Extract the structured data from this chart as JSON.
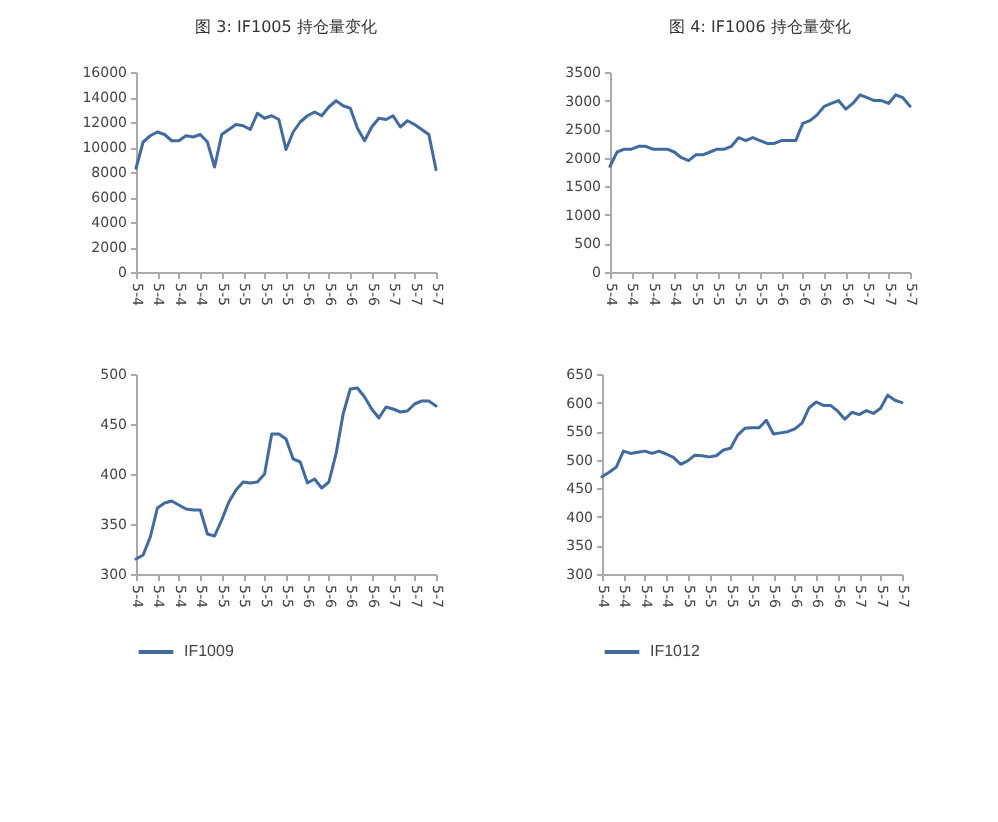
{
  "chart_data": [
    {
      "type": "line",
      "title": "图 3:  IF1005 持仓量变化",
      "categories": [
        "5-4",
        null,
        null,
        "5-4",
        null,
        null,
        "5-4",
        null,
        null,
        "5-4",
        null,
        null,
        "5-5",
        null,
        null,
        "5-5",
        null,
        null,
        "5-5",
        null,
        null,
        "5-5",
        null,
        null,
        "5-6",
        null,
        null,
        "5-6",
        null,
        null,
        "5-6",
        null,
        null,
        "5-6",
        null,
        null,
        "5-7",
        null,
        null,
        "5-7",
        null,
        null,
        "5-7"
      ],
      "series": [
        {
          "color": "#416b9f",
          "values": [
            8300,
            10400,
            10900,
            11200,
            11000,
            10500,
            10500,
            10900,
            10800,
            11000,
            10400,
            8400,
            11000,
            11400,
            11800,
            11700,
            11400,
            12700,
            12300,
            12500,
            12200,
            9800,
            11200,
            12000,
            12500,
            12800,
            12500,
            13200,
            13700,
            13300,
            13100,
            11500,
            10500,
            11600,
            12300,
            12200,
            12500,
            11600,
            12100,
            11800,
            11400,
            11000,
            8200
          ]
        }
      ],
      "ylim": [
        0,
        16000
      ],
      "yticks": [
        0,
        2000,
        4000,
        6000,
        8000,
        10000,
        12000,
        14000,
        16000
      ]
    },
    {
      "type": "line",
      "title": "图 4:  IF1006 持仓量变化",
      "categories": [
        "5-4",
        null,
        null,
        "5-4",
        null,
        null,
        "5-4",
        null,
        null,
        "5-4",
        null,
        null,
        "5-5",
        null,
        null,
        "5-5",
        null,
        null,
        "5-5",
        null,
        null,
        "5-5",
        null,
        null,
        "5-6",
        null,
        null,
        "5-6",
        null,
        null,
        "5-6",
        null,
        null,
        "5-6",
        null,
        null,
        "5-7",
        null,
        null,
        "5-7",
        null,
        null,
        "5-7"
      ],
      "series": [
        {
          "color": "#416b9f",
          "values": [
            1850,
            2100,
            2150,
            2150,
            2200,
            2200,
            2150,
            2150,
            2150,
            2100,
            2000,
            1950,
            2050,
            2050,
            2100,
            2150,
            2150,
            2200,
            2350,
            2300,
            2350,
            2300,
            2250,
            2250,
            2300,
            2300,
            2300,
            2600,
            2650,
            2750,
            2900,
            2950,
            3000,
            2850,
            2950,
            3100,
            3050,
            3000,
            3000,
            2950,
            3100,
            3050,
            2900
          ]
        }
      ],
      "ylim": [
        0,
        3500
      ],
      "yticks": [
        0,
        500,
        1000,
        1500,
        2000,
        2500,
        3000,
        3500
      ]
    },
    {
      "type": "line",
      "categories": [
        "5-4",
        null,
        null,
        "5-4",
        null,
        null,
        "5-4",
        null,
        null,
        "5-4",
        null,
        null,
        "5-5",
        null,
        null,
        "5-5",
        null,
        null,
        "5-5",
        null,
        null,
        "5-5",
        null,
        null,
        "5-6",
        null,
        null,
        "5-6",
        null,
        null,
        "5-6",
        null,
        null,
        "5-6",
        null,
        null,
        "5-7",
        null,
        null,
        "5-7",
        null,
        null,
        "5-7"
      ],
      "series": [
        {
          "name": "IF1009",
          "color": "#416b9f",
          "values": [
            315,
            319,
            337,
            366,
            371,
            373,
            369,
            365,
            364,
            364,
            340,
            338,
            354,
            372,
            384,
            392,
            391,
            392,
            400,
            440,
            440,
            435,
            415,
            412,
            391,
            395,
            386,
            392,
            420,
            460,
            485,
            486,
            477,
            465,
            456,
            467,
            465,
            462,
            463,
            470,
            473,
            473,
            468
          ]
        }
      ],
      "ylim": [
        300,
        500
      ],
      "yticks": [
        300,
        350,
        400,
        450,
        500
      ],
      "legend": "bottom"
    },
    {
      "type": "line",
      "categories": [
        "5-4",
        null,
        null,
        "5-4",
        null,
        null,
        "5-4",
        null,
        null,
        "5-4",
        null,
        null,
        "5-5",
        null,
        null,
        "5-5",
        null,
        null,
        "5-5",
        null,
        null,
        "5-5",
        null,
        null,
        "5-6",
        null,
        null,
        "5-6",
        null,
        null,
        "5-6",
        null,
        null,
        "5-6",
        null,
        null,
        "5-7",
        null,
        null,
        "5-7",
        null,
        null,
        "5-7"
      ],
      "series": [
        {
          "name": "IF1012",
          "color": "#416b9f",
          "values": [
            470,
            478,
            487,
            515,
            511,
            513,
            515,
            511,
            515,
            510,
            504,
            492,
            498,
            508,
            507,
            505,
            507,
            517,
            520,
            543,
            555,
            556,
            556,
            569,
            545,
            547,
            549,
            554,
            564,
            591,
            601,
            595,
            595,
            585,
            571,
            583,
            579,
            586,
            581,
            590,
            613,
            604,
            600
          ]
        }
      ],
      "ylim": [
        300,
        650
      ],
      "yticks": [
        300,
        350,
        400,
        450,
        500,
        550,
        600,
        650
      ],
      "legend": "bottom"
    }
  ]
}
